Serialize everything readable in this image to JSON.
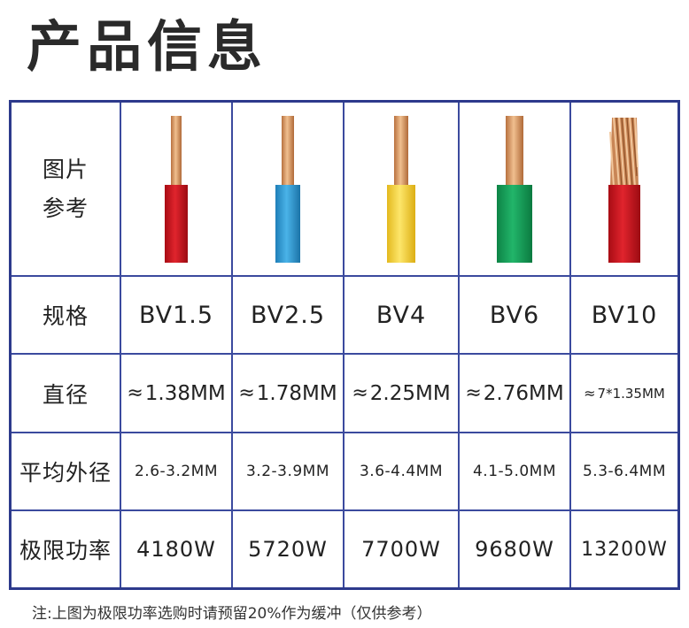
{
  "title": "产品信息",
  "row_headers": {
    "image_line1": "图片",
    "image_line2": "参考",
    "spec": "规格",
    "diameter": "直径",
    "avg_outer": "平均外径",
    "power": "极限功率"
  },
  "approx_symbol": "≈",
  "columns": [
    {
      "spec": "BV1.5",
      "diameter": "1.38MM",
      "avg_outer": "2.6-3.2MM",
      "power": "4180W",
      "insulation_color": "#d5131e",
      "conductor": "solid"
    },
    {
      "spec": "BV2.5",
      "diameter": "1.78MM",
      "avg_outer": "3.2-3.9MM",
      "power": "5720W",
      "insulation_color": "#2d9ad6",
      "conductor": "solid"
    },
    {
      "spec": "BV4",
      "diameter": "2.25MM",
      "avg_outer": "3.6-4.4MM",
      "power": "7700W",
      "insulation_color": "#f3d23a",
      "conductor": "solid"
    },
    {
      "spec": "BV6",
      "diameter": "2.76MM",
      "avg_outer": "4.1-5.0MM",
      "power": "9680W",
      "insulation_color": "#16a05a",
      "conductor": "solid"
    },
    {
      "spec": "BV10",
      "diameter": "7*1.35MM",
      "avg_outer": "5.3-6.4MM",
      "power": "13200W",
      "insulation_color": "#d5131e",
      "conductor": "stranded"
    }
  ],
  "note": "注:上图为极限功率选购时请预留20%作为缓冲（仅供参考）",
  "colors": {
    "border": "#2d3a8c",
    "copper": "#d99663",
    "title": "#2a2a2a"
  }
}
